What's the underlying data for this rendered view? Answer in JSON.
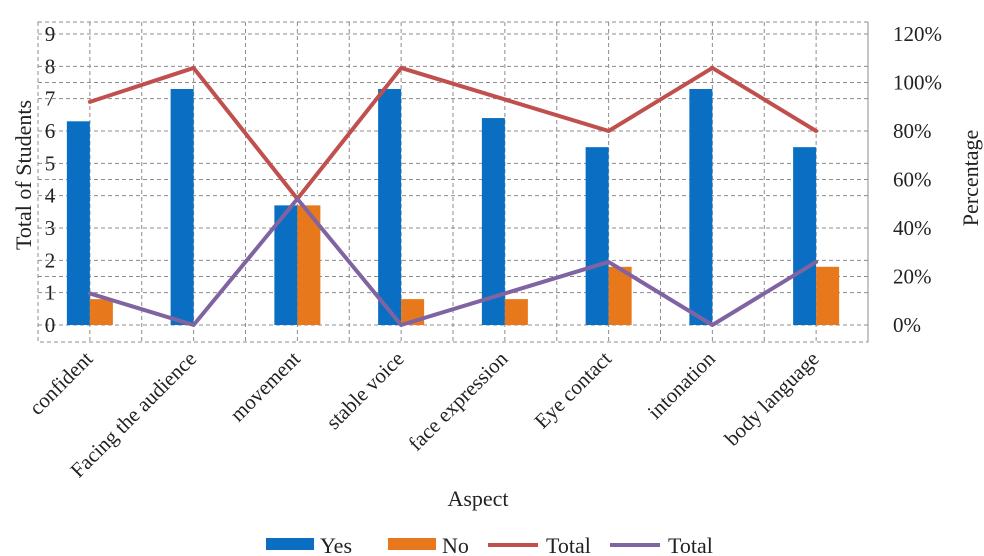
{
  "chart_data": {
    "type": "bar",
    "categories": [
      "confident",
      "Facing the audience",
      "movement",
      "stable voice",
      "face expression",
      "Eye contact",
      "intonation",
      "body language"
    ],
    "bar_series": [
      {
        "name": "Yes",
        "color": "#0a6fc2",
        "values": [
          6.3,
          7.3,
          3.7,
          7.3,
          6.4,
          5.5,
          7.3,
          5.5
        ]
      },
      {
        "name": "No",
        "color": "#e8781c",
        "values": [
          0.8,
          0,
          3.7,
          0.8,
          0.8,
          1.8,
          0,
          1.8
        ]
      }
    ],
    "line_series": [
      {
        "name": "Total",
        "color": "#c0504d",
        "values": [
          0.92,
          1.06,
          0.52,
          1.06,
          0.93,
          0.8,
          1.06,
          0.8
        ]
      },
      {
        "name": "Total",
        "color": "#8064a2",
        "values": [
          0.13,
          0.0,
          0.52,
          0.0,
          0.13,
          0.26,
          0.0,
          0.26
        ]
      }
    ],
    "left_axis": {
      "title": "Total of Students",
      "min": 0,
      "max": 9,
      "ticks": [
        0,
        1,
        2,
        3,
        4,
        5,
        6,
        7,
        8,
        9
      ]
    },
    "right_axis": {
      "title": "Percentage",
      "min": 0,
      "max": 1.2,
      "ticks": [
        "0%",
        "20%",
        "40%",
        "60%",
        "80%",
        "100%",
        "120%"
      ]
    },
    "xlabel": "Aspect",
    "grid": true,
    "legend_position": "bottom"
  }
}
